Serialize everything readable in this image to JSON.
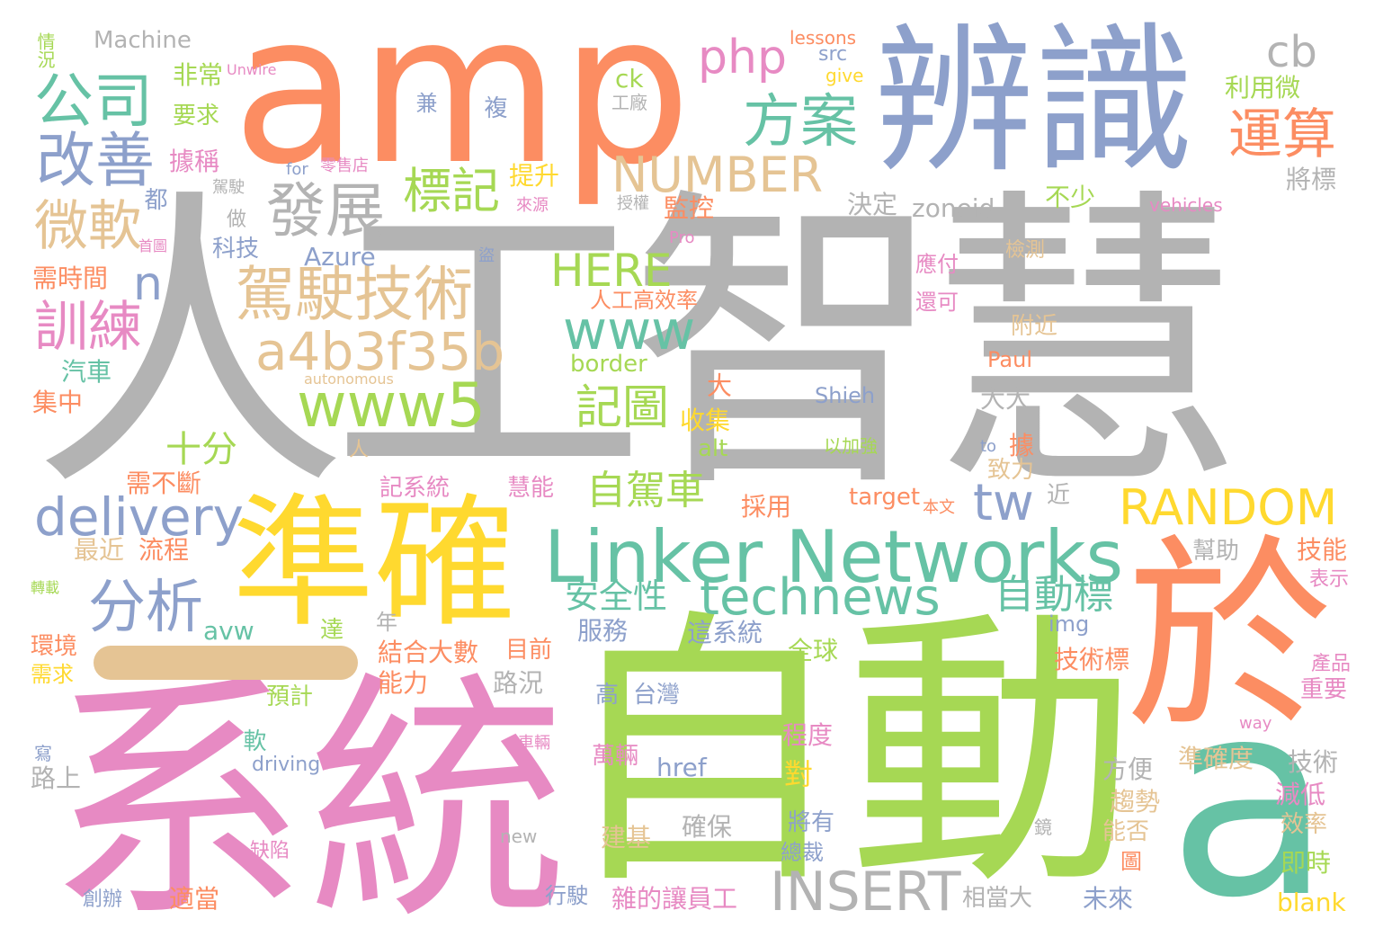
{
  "words": [
    {
      "text": "人工智慧",
      "color": "#b3b3b3"
    },
    {
      "text": "系統",
      "color": "#e78ac3"
    },
    {
      "text": "自動",
      "color": "#a6d854"
    },
    {
      "text": "amp",
      "color": "#fc8d62"
    },
    {
      "text": "辨識",
      "color": "#8da0cb"
    },
    {
      "text": "準確",
      "color": "#ffd92f"
    },
    {
      "text": "於",
      "color": "#fc8d62"
    },
    {
      "text": "a",
      "color": "#66c2a5"
    },
    {
      "text": "Linker Networks",
      "color": "#66c2a5"
    },
    {
      "text": "technews",
      "color": "#66c2a5"
    },
    {
      "text": "駕駛技術",
      "color": "#e5c494"
    },
    {
      "text": "a4b3f35b",
      "color": "#e5c494"
    },
    {
      "text": "www5",
      "color": "#a6d854"
    },
    {
      "text": "www",
      "color": "#66c2a5"
    },
    {
      "text": "delivery",
      "color": "#8da0cb"
    },
    {
      "text": "INSERT",
      "color": "#b3b3b3"
    },
    {
      "text": "RANDOM",
      "color": "#ffd92f"
    },
    {
      "text": "NUMBER",
      "color": "#e5c494"
    },
    {
      "text": "HERE",
      "color": "#a6d854"
    },
    {
      "text": "公司",
      "color": "#66c2a5"
    },
    {
      "text": "改善",
      "color": "#8da0cb"
    },
    {
      "text": "發展",
      "color": "#b3b3b3"
    },
    {
      "text": "微軟",
      "color": "#e5c494"
    },
    {
      "text": "訓練",
      "color": "#e78ac3"
    },
    {
      "text": "分析",
      "color": "#8da0cb"
    },
    {
      "text": "方案",
      "color": "#66c2a5"
    },
    {
      "text": "運算",
      "color": "#fc8d62"
    },
    {
      "text": "標記",
      "color": "#a6d854"
    },
    {
      "text": "記圖",
      "color": "#a6d854"
    },
    {
      "text": "自駕車",
      "color": "#a6d854"
    },
    {
      "text": "安全性",
      "color": "#66c2a5"
    },
    {
      "text": "自動標",
      "color": "#66c2a5"
    },
    {
      "text": "php",
      "color": "#e78ac3"
    },
    {
      "text": "cb",
      "color": "#b3b3b3"
    },
    {
      "text": "n",
      "color": "#8da0cb"
    },
    {
      "text": "tw",
      "color": "#8da0cb"
    },
    {
      "text": "十分",
      "color": "#a6d854"
    },
    {
      "text": "Machine",
      "color": "#b3b3b3"
    },
    {
      "text": "情況",
      "color": "#a6d854"
    },
    {
      "text": "非常",
      "color": "#a6d854"
    },
    {
      "text": "Unwire",
      "color": "#e78ac3"
    },
    {
      "text": "要求",
      "color": "#a6d854"
    },
    {
      "text": "據稱",
      "color": "#e78ac3"
    },
    {
      "text": "for",
      "color": "#8da0cb"
    },
    {
      "text": "零售店",
      "color": "#e78ac3"
    },
    {
      "text": "駕駛",
      "color": "#b3b3b3"
    },
    {
      "text": "都",
      "color": "#8da0cb"
    },
    {
      "text": "做",
      "color": "#b3b3b3"
    },
    {
      "text": "首圖",
      "color": "#e78ac3"
    },
    {
      "text": "科技",
      "color": "#8da0cb"
    },
    {
      "text": "需時間",
      "color": "#fc8d62"
    },
    {
      "text": "Azure",
      "color": "#8da0cb"
    },
    {
      "text": "汽車",
      "color": "#66c2a5"
    },
    {
      "text": "集中",
      "color": "#fc8d62"
    },
    {
      "text": "autonomous",
      "color": "#e5c494"
    },
    {
      "text": "需不斷",
      "color": "#fc8d62"
    },
    {
      "text": "最近",
      "color": "#e5c494"
    },
    {
      "text": "流程",
      "color": "#fc8d62"
    },
    {
      "text": "轉載",
      "color": "#a6d854"
    },
    {
      "text": "環境",
      "color": "#fc8d62"
    },
    {
      "text": "需求",
      "color": "#ffd92f"
    },
    {
      "text": "avw",
      "color": "#66c2a5"
    },
    {
      "text": "達",
      "color": "#a6d854"
    },
    {
      "text": "年",
      "color": "#b3b3b3"
    },
    {
      "text": "預計",
      "color": "#a6d854"
    },
    {
      "text": "軟",
      "color": "#66c2a5"
    },
    {
      "text": "路上",
      "color": "#b3b3b3"
    },
    {
      "text": "driving",
      "color": "#8da0cb"
    },
    {
      "text": "寫",
      "color": "#8da0cb"
    },
    {
      "text": "缺陷",
      "color": "#e78ac3"
    },
    {
      "text": "創辦",
      "color": "#8da0cb"
    },
    {
      "text": "適當",
      "color": "#fc8d62"
    },
    {
      "text": "lessons",
      "color": "#fc8d62"
    },
    {
      "text": "src",
      "color": "#8da0cb"
    },
    {
      "text": "give",
      "color": "#ffd92f"
    },
    {
      "text": "ck",
      "color": "#a6d854"
    },
    {
      "text": "工廠",
      "color": "#b3b3b3"
    },
    {
      "text": "兼",
      "color": "#8da0cb"
    },
    {
      "text": "複",
      "color": "#8da0cb"
    },
    {
      "text": "提升",
      "color": "#ffd92f"
    },
    {
      "text": "決定",
      "color": "#b3b3b3"
    },
    {
      "text": "zoneid",
      "color": "#b3b3b3"
    },
    {
      "text": "不少",
      "color": "#a6d854"
    },
    {
      "text": "監控",
      "color": "#fc8d62"
    },
    {
      "text": "來源",
      "color": "#e78ac3"
    },
    {
      "text": "授權",
      "color": "#b3b3b3"
    },
    {
      "text": "Pro",
      "color": "#e78ac3"
    },
    {
      "text": "盜",
      "color": "#8da0cb"
    },
    {
      "text": "人工高效率",
      "color": "#fc8d62"
    },
    {
      "text": "應付",
      "color": "#e78ac3"
    },
    {
      "text": "還可",
      "color": "#e78ac3"
    },
    {
      "text": "檢測",
      "color": "#e5c494"
    },
    {
      "text": "附近",
      "color": "#e5c494"
    },
    {
      "text": "利用微",
      "color": "#a6d854"
    },
    {
      "text": "將標",
      "color": "#b3b3b3"
    },
    {
      "text": "vehicles",
      "color": "#e78ac3"
    },
    {
      "text": "border",
      "color": "#a6d854"
    },
    {
      "text": "Paul",
      "color": "#fc8d62"
    },
    {
      "text": "大",
      "color": "#fc8d62"
    },
    {
      "text": "Shieh",
      "color": "#8da0cb"
    },
    {
      "text": "大大",
      "color": "#b3b3b3"
    },
    {
      "text": "收集",
      "color": "#ffd92f"
    },
    {
      "text": "alt",
      "color": "#a6d854"
    },
    {
      "text": "以加強",
      "color": "#a6d854"
    },
    {
      "text": "to",
      "color": "#8da0cb"
    },
    {
      "text": "據",
      "color": "#fc8d62"
    },
    {
      "text": "致力",
      "color": "#e5c494"
    },
    {
      "text": "人",
      "color": "#e5c494"
    },
    {
      "text": "記系統",
      "color": "#e78ac3"
    },
    {
      "text": "慧能",
      "color": "#e78ac3"
    },
    {
      "text": "target",
      "color": "#fc8d62"
    },
    {
      "text": "本文",
      "color": "#fc8d62"
    },
    {
      "text": "近",
      "color": "#b3b3b3"
    },
    {
      "text": "採用",
      "color": "#fc8d62"
    },
    {
      "text": "幫助",
      "color": "#b3b3b3"
    },
    {
      "text": "技能",
      "color": "#fc8d62"
    },
    {
      "text": "表示",
      "color": "#e78ac3"
    },
    {
      "text": "img",
      "color": "#8da0cb"
    },
    {
      "text": "服務",
      "color": "#8da0cb"
    },
    {
      "text": "這系統",
      "color": "#8da0cb"
    },
    {
      "text": "目前",
      "color": "#fc8d62"
    },
    {
      "text": "結合大數",
      "color": "#fc8d62"
    },
    {
      "text": "能力",
      "color": "#fc8d62"
    },
    {
      "text": "路況",
      "color": "#b3b3b3"
    },
    {
      "text": "高",
      "color": "#8da0cb"
    },
    {
      "text": "台灣",
      "color": "#8da0cb"
    },
    {
      "text": "全球",
      "color": "#a6d854"
    },
    {
      "text": "技術標",
      "color": "#fc8d62"
    },
    {
      "text": "產品",
      "color": "#e78ac3"
    },
    {
      "text": "重要",
      "color": "#e78ac3"
    },
    {
      "text": "way",
      "color": "#e78ac3"
    },
    {
      "text": "程度",
      "color": "#e78ac3"
    },
    {
      "text": "車輛",
      "color": "#e78ac3"
    },
    {
      "text": "萬輛",
      "color": "#e78ac3"
    },
    {
      "text": "href",
      "color": "#8da0cb"
    },
    {
      "text": "準確度",
      "color": "#e5c494"
    },
    {
      "text": "技術",
      "color": "#b3b3b3"
    },
    {
      "text": "方便",
      "color": "#b3b3b3"
    },
    {
      "text": "對",
      "color": "#ffd92f"
    },
    {
      "text": "趨勢",
      "color": "#e5c494"
    },
    {
      "text": "減低",
      "color": "#e78ac3"
    },
    {
      "text": "效率",
      "color": "#e5c494"
    },
    {
      "text": "確保",
      "color": "#b3b3b3"
    },
    {
      "text": "將有",
      "color": "#8da0cb"
    },
    {
      "text": "建基",
      "color": "#e5c494"
    },
    {
      "text": "new",
      "color": "#b3b3b3"
    },
    {
      "text": "鏡",
      "color": "#b3b3b3"
    },
    {
      "text": "能否",
      "color": "#e5c494"
    },
    {
      "text": "總裁",
      "color": "#8da0cb"
    },
    {
      "text": "即時",
      "color": "#a6d854"
    },
    {
      "text": "圖",
      "color": "#fc8d62"
    },
    {
      "text": "行駛",
      "color": "#8da0cb"
    },
    {
      "text": "雜的讓員工",
      "color": "#e78ac3"
    },
    {
      "text": "相當大",
      "color": "#b3b3b3"
    },
    {
      "text": "未來",
      "color": "#8da0cb"
    },
    {
      "text": "blank",
      "color": "#ffd92f"
    }
  ]
}
